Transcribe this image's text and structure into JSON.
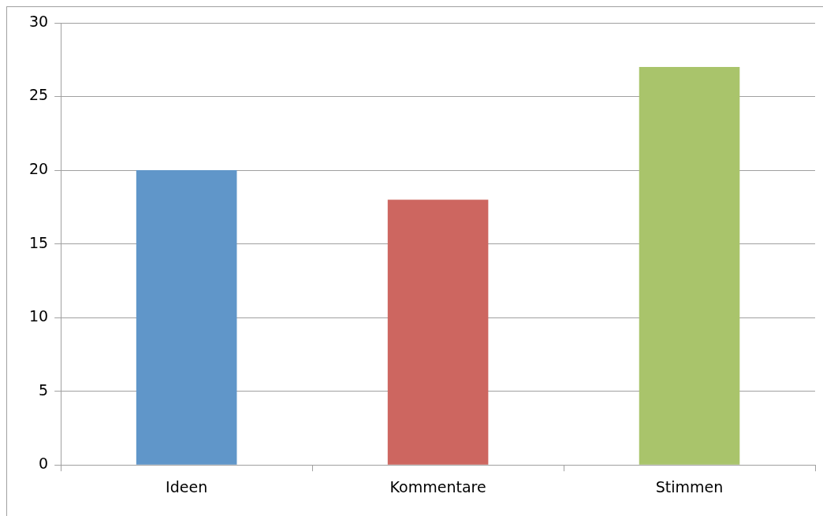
{
  "chart_data": {
    "type": "bar",
    "categories": [
      "Ideen",
      "Kommentare",
      "Stimmen"
    ],
    "values": [
      20,
      18,
      27
    ],
    "colors": [
      "#6096c9",
      "#cd6660",
      "#a9c46b"
    ],
    "ylim": [
      0,
      30
    ],
    "yticks": [
      0,
      5,
      10,
      15,
      20,
      25,
      30
    ],
    "grid": "y",
    "legend": false
  }
}
